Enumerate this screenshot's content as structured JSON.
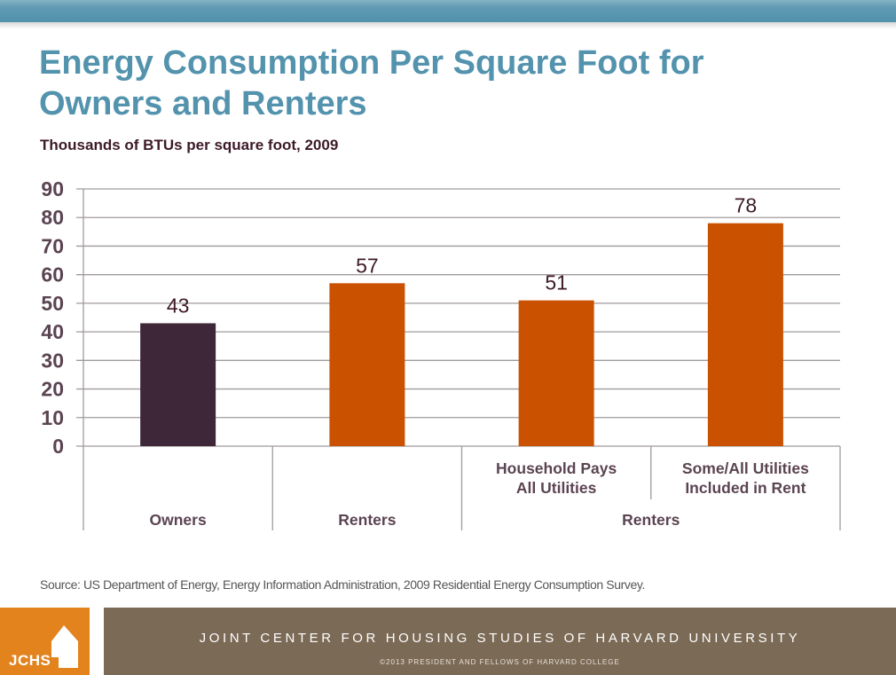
{
  "header": {
    "title_line1": "Energy Consumption Per Square Foot for",
    "title_line2": "Owners and Renters",
    "subtitle": "Thousands of BTUs per square foot, 2009"
  },
  "chart_data": {
    "type": "bar",
    "title": "Energy Consumption Per Square Foot for Owners and Renters",
    "subtitle": "Thousands of BTUs per square foot, 2009",
    "xlabel": "",
    "ylabel": "Thousands of BTUs per square foot",
    "ylim": [
      0,
      90
    ],
    "yticks": [
      0,
      10,
      20,
      30,
      40,
      50,
      60,
      70,
      80,
      90
    ],
    "grid": true,
    "legend": "none",
    "categories": [
      "Owners",
      "Renters",
      "Household Pays All Utilities",
      "Some/All Utilities Included in Rent"
    ],
    "category_labels": [
      {
        "sub": "",
        "group": "Owners"
      },
      {
        "sub": "",
        "group": "Renters"
      },
      {
        "sub": [
          "Household Pays",
          "All Utilities"
        ],
        "group": "Renters"
      },
      {
        "sub": [
          "Some/All Utilities",
          "Included in Rent"
        ],
        "group": "Renters"
      }
    ],
    "group_labels": [
      {
        "label": "Owners",
        "span": [
          0,
          0
        ]
      },
      {
        "label": "Renters",
        "span": [
          1,
          1
        ]
      },
      {
        "label": "Renters",
        "span": [
          2,
          3
        ]
      }
    ],
    "values": [
      43,
      57,
      51,
      78
    ],
    "data_labels": [
      "43",
      "57",
      "51",
      "78"
    ],
    "bar_colors": [
      "#3e2739",
      "#c95100",
      "#c95100",
      "#c95100"
    ]
  },
  "colors": {
    "title": "#5393ad",
    "subtitle": "#3d1a28",
    "axis_text": "#5b4451",
    "grid": "#a09a9c",
    "logo": "#e2831e",
    "footer": "#7b6a56"
  },
  "source": "Source: US Department of Energy, Energy Information Administration, 2009 Residential Energy Consumption Survey.",
  "footer": {
    "logo_text": "JCHS",
    "logo_icon": "house-icon",
    "org_name": "JOINT CENTER FOR HOUSING STUDIES OF HARVARD UNIVERSITY",
    "copyright": "©2013 PRESIDENT AND FELLOWS OF HARVARD COLLEGE"
  }
}
